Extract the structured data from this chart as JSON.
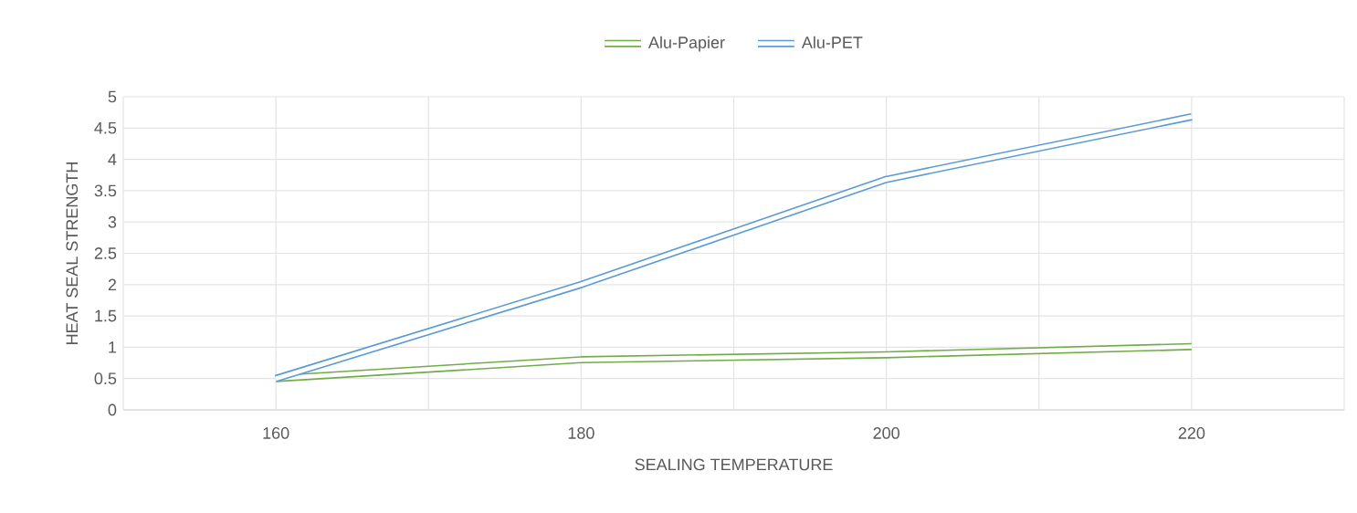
{
  "chart_data": {
    "type": "line",
    "xlabel": "SEALING TEMPERATURE",
    "ylabel": "HEAT SEAL STRENGTH",
    "x": [
      160,
      180,
      200,
      220
    ],
    "series": [
      {
        "name": "Alu-Papier",
        "color": "#70ad47",
        "values": [
          0.5,
          0.8,
          0.88,
          1.01
        ]
      },
      {
        "name": "Alu-PET",
        "color": "#5b9bd5",
        "values": [
          0.5,
          2.0,
          3.68,
          4.68
        ]
      }
    ],
    "xlim": [
      150,
      230
    ],
    "xticks": [
      {
        "value": 150,
        "label": null
      },
      160,
      {
        "value": 170,
        "label": null
      },
      180,
      {
        "value": 190,
        "label": null
      },
      200,
      {
        "value": 210,
        "label": null
      },
      220,
      {
        "value": 230,
        "label": null
      }
    ],
    "ylim": [
      0,
      5
    ],
    "yticks": [
      0,
      0.5,
      1,
      1.5,
      2,
      2.5,
      3,
      3.5,
      4,
      4.5,
      5
    ],
    "grid": true,
    "legend": "top",
    "marker": "none",
    "line_style": "solid"
  }
}
